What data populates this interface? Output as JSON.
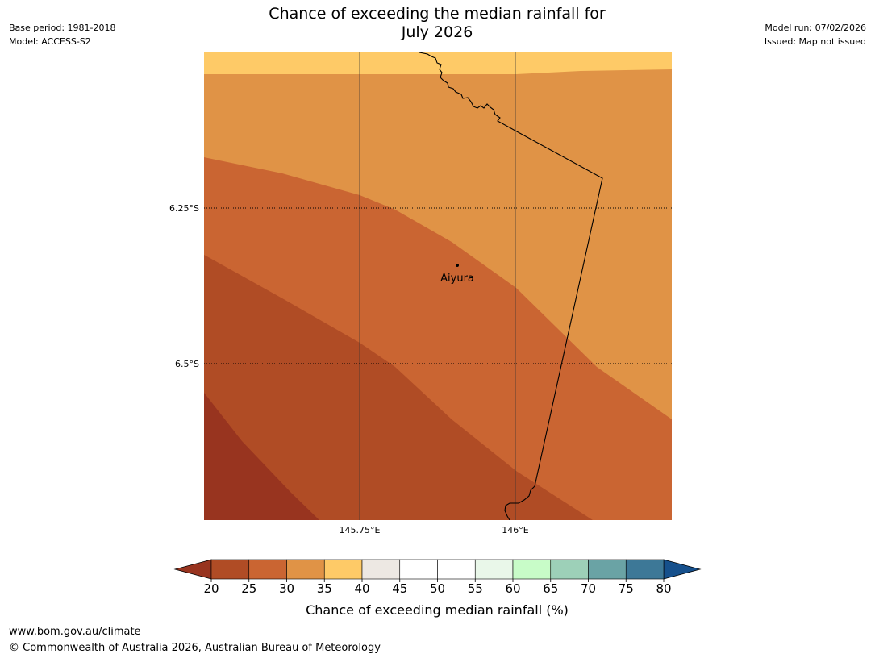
{
  "header": {
    "base_period": "Base period: 1981-2018",
    "model": "Model: ACCESS-S2",
    "model_run": "Model run: 07/02/2026",
    "issued": "Issued: Map not issued",
    "title_line1": "Chance of exceeding the median rainfall for",
    "title_line2": "July 2026"
  },
  "chart_data": {
    "type": "heatmap",
    "title": "Chance of exceeding the median rainfall for July 2026",
    "xlabel": "",
    "ylabel": "",
    "x_ticks": [
      145.75,
      146.0
    ],
    "x_tick_labels": [
      "145.75°E",
      "146°E"
    ],
    "y_ticks": [
      -6.25,
      -6.5
    ],
    "y_tick_labels": [
      "6.25°S",
      "6.5°S"
    ],
    "grid": true,
    "regions": [
      {
        "range": "35-40",
        "color": "#FECA67"
      },
      {
        "range": "30-35",
        "color": "#E09346"
      },
      {
        "range": "25-30",
        "color": "#CA6532"
      },
      {
        "range": "20-25",
        "color": "#B04C25"
      },
      {
        "range": "<20",
        "color": "#98341F"
      }
    ],
    "place": {
      "name": "Aiyura"
    },
    "colorbar": {
      "label": "Chance of exceeding median rainfall (%)",
      "ticks": [
        "20",
        "25",
        "30",
        "35",
        "40",
        "45",
        "50",
        "55",
        "60",
        "65",
        "70",
        "75",
        "80"
      ],
      "colors": [
        "#B04C25",
        "#CA6532",
        "#E09346",
        "#FECA67",
        "#EDE8E3",
        "#FFFFFF",
        "#FFFFFF",
        "#E9F7E9",
        "#C8FCC8",
        "#9DD0B8",
        "#6AA3A5",
        "#3D7897"
      ],
      "under_color": "#98341F",
      "over_color": "#16508C"
    }
  },
  "footer": {
    "url": "www.bom.gov.au/climate",
    "copyright": "© Commonwealth of Australia 2026, Australian Bureau of Meteorology"
  }
}
